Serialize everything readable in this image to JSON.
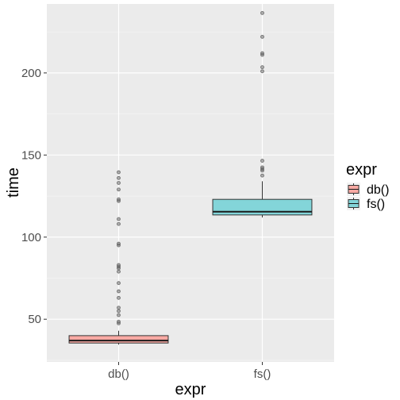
{
  "chart_data": {
    "type": "boxplot",
    "xlabel": "expr",
    "ylabel": "time",
    "ylim": [
      24,
      242
    ],
    "yticks": [
      50,
      100,
      150,
      200
    ],
    "categories": [
      "db()",
      "fs()"
    ],
    "grid": true,
    "legend": {
      "title": "expr",
      "position": "right"
    },
    "series": [
      {
        "name": "db()",
        "color": "#f8a9a3",
        "stats": {
          "whisker_low": 34.5,
          "q1": 35.5,
          "median": 37,
          "q3": 40,
          "whisker_high": 43
        },
        "outliers": [
          47.5,
          48.5,
          52.5,
          55,
          57,
          63,
          67,
          72,
          79,
          81,
          82,
          83,
          95,
          96,
          108,
          111,
          122,
          123,
          129,
          133,
          136,
          139.5
        ]
      },
      {
        "name": "fs()",
        "color": "#83d5d9",
        "stats": {
          "whisker_low": 112,
          "q1": 113.5,
          "median": 115.5,
          "q3": 123,
          "whisker_high": 134
        },
        "outliers": [
          137.5,
          140.5,
          141.5,
          142.5,
          146.5,
          201,
          203.5,
          211,
          212,
          222,
          236.5
        ]
      }
    ]
  }
}
